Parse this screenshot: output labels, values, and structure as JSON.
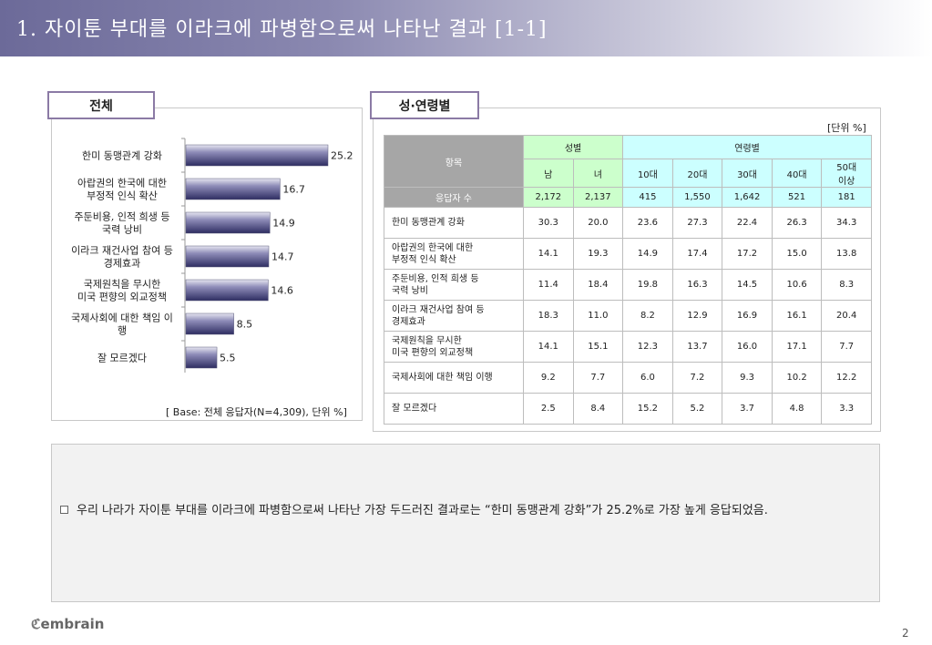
{
  "header": {
    "title": "1. 자이툰 부대를 이라크에 파병함으로써 나타난 결과 [1-1]"
  },
  "tabs": {
    "total": "전체",
    "gender_age": "성·연령별"
  },
  "chart_data": {
    "type": "bar",
    "orientation": "horizontal",
    "categories": [
      "한미 동맹관계 강화",
      "아랍권의 한국에 대한 부정적 인식 확산",
      "주둔비용, 인적 희생 등 국력 낭비",
      "이라크 재건사업 참여 등 경제효과",
      "국제원칙을 무시한 미국 편향의 외교정책",
      "국제사회에 대한 책임 이행",
      "잘 모르겠다"
    ],
    "category_lines": [
      [
        "한미 동맹관계 강화"
      ],
      [
        "아랍권의 한국에 대한",
        "부정적 인식 확산"
      ],
      [
        "주둔비용, 인적 희생 등",
        "국력 낭비"
      ],
      [
        "이라크 재건사업 참여 등",
        "경제효과"
      ],
      [
        "국제원칙을 무시한",
        "미국 편향의 외교정책"
      ],
      [
        "국제사회에 대한 책임 이",
        "행"
      ],
      [
        "잘 모르겠다"
      ]
    ],
    "values": [
      25.2,
      16.7,
      14.9,
      14.7,
      14.6,
      8.5,
      5.5
    ],
    "value_labels": [
      "25.2",
      "16.7",
      "14.9",
      "14.7",
      "14.6",
      "8.5",
      "5.5"
    ],
    "xlim": [
      0,
      25.2
    ],
    "grid": false,
    "bar_color": "#3b3a6e"
  },
  "base_note": "[ Base: 전체 응답자(N=4,309), 단위 %]",
  "table": {
    "unit": "[단위 %]",
    "header_item": "항목",
    "group_gender": "성별",
    "group_age": "연령별",
    "columns": [
      "남",
      "녀",
      "10대",
      "20대",
      "30대",
      "40대",
      "50대 이상"
    ],
    "col_lines": [
      [
        "남"
      ],
      [
        "녀"
      ],
      [
        "10대"
      ],
      [
        "20대"
      ],
      [
        "30대"
      ],
      [
        "40대"
      ],
      [
        "50대",
        "이상"
      ]
    ],
    "respondents_label": "응답자 수",
    "respondents": [
      "2,172",
      "2,137",
      "415",
      "1,550",
      "1,642",
      "521",
      "181"
    ],
    "rows": [
      {
        "label_lines": [
          "한미 동맹관계 강화"
        ],
        "values": [
          "30.3",
          "20.0",
          "23.6",
          "27.3",
          "22.4",
          "26.3",
          "34.3"
        ]
      },
      {
        "label_lines": [
          "아랍권의 한국에 대한",
          "부정적 인식 확산"
        ],
        "values": [
          "14.1",
          "19.3",
          "14.9",
          "17.4",
          "17.2",
          "15.0",
          "13.8"
        ]
      },
      {
        "label_lines": [
          "주둔비용, 인적 희생 등",
          "국력 낭비"
        ],
        "values": [
          "11.4",
          "18.4",
          "19.8",
          "16.3",
          "14.5",
          "10.6",
          "8.3"
        ]
      },
      {
        "label_lines": [
          "이라크 재건사업 참여 등",
          "경제효과"
        ],
        "values": [
          "18.3",
          "11.0",
          "8.2",
          "12.9",
          "16.9",
          "16.1",
          "20.4"
        ]
      },
      {
        "label_lines": [
          "국제원칙을 무시한",
          "미국 편향의 외교정책"
        ],
        "values": [
          "14.1",
          "15.1",
          "12.3",
          "13.7",
          "16.0",
          "17.1",
          "7.7"
        ]
      },
      {
        "label_lines": [
          "국제사회에 대한 책임 이행"
        ],
        "values": [
          "9.2",
          "7.7",
          "6.0",
          "7.2",
          "9.3",
          "10.2",
          "12.2"
        ]
      },
      {
        "label_lines": [
          "잘 모르겠다"
        ],
        "values": [
          "2.5",
          "8.4",
          "15.2",
          "5.2",
          "3.7",
          "4.8",
          "3.3"
        ]
      }
    ]
  },
  "summary": {
    "text": "우리 나라가 자이툰 부대를 이라크에 파병함으로써 나타난 가장 두드러진 결과로는 “한미 동맹관계 강화”가 25.2%로 가장 높게 응답되었음."
  },
  "footer": {
    "logo": "embrain",
    "page_number": "2"
  },
  "colors": {
    "header_start": "#6c6a99",
    "tab_border": "#8b7aa5",
    "gender_header": "#ccffcc",
    "age_header": "#ccffff",
    "item_header": "#a6a6a6"
  }
}
